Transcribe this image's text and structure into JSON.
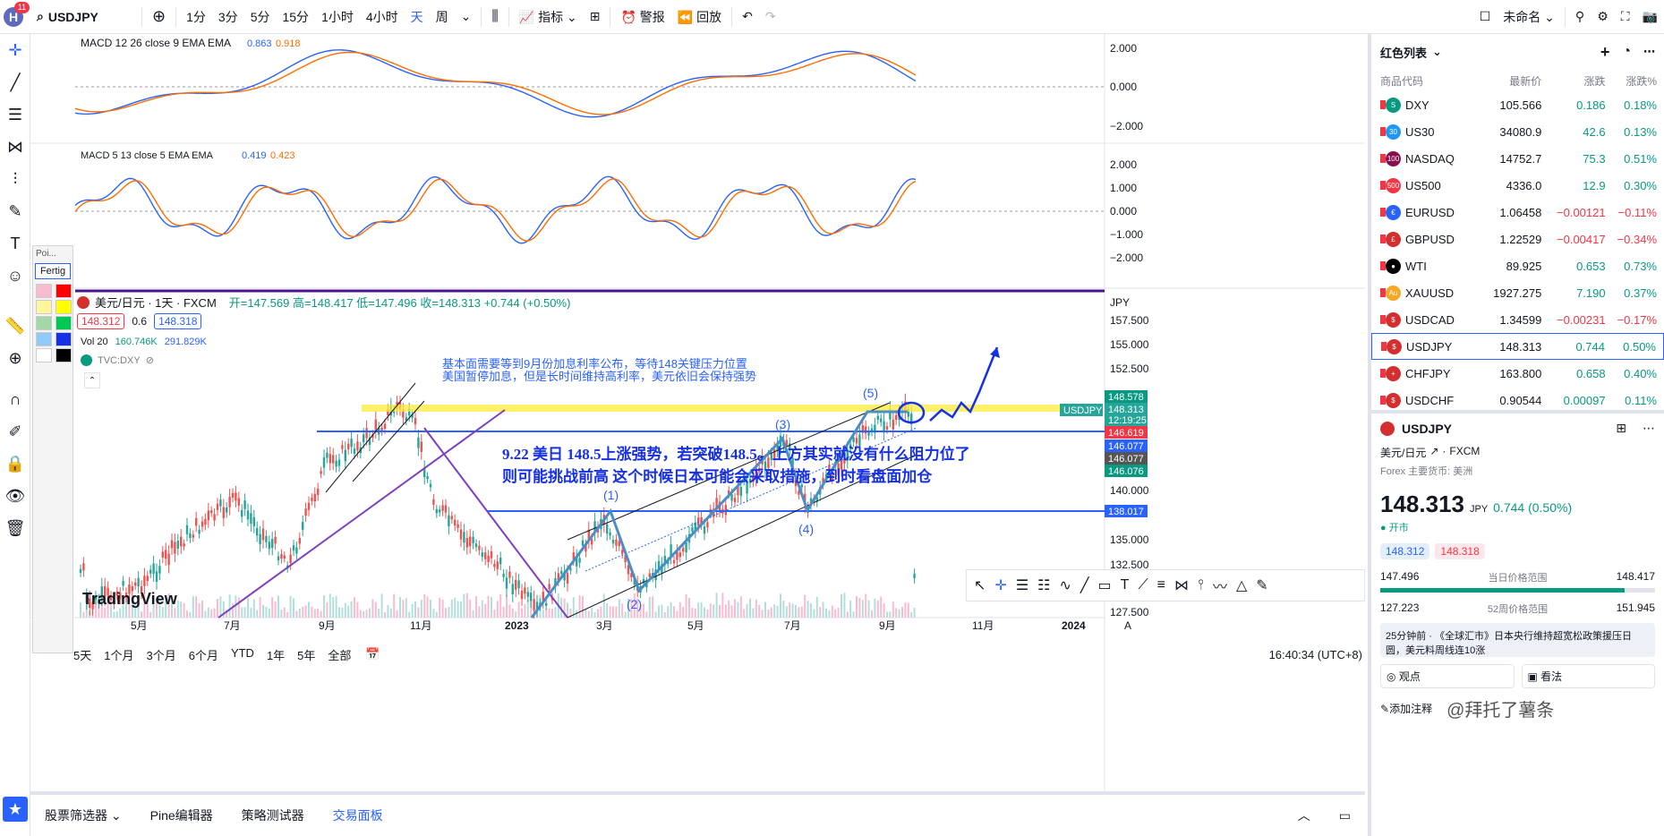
{
  "topbar": {
    "avatar_letter": "H",
    "notif_count": "11",
    "symbol": "USDJPY",
    "intervals": [
      "1分",
      "3分",
      "5分",
      "15分",
      "1小时",
      "4小时",
      "天",
      "周"
    ],
    "active_interval": "天",
    "indicators": "指标",
    "alert": "警报",
    "replay": "回放",
    "layout_name": "未命名"
  },
  "macd1": {
    "label": "MACD 12 26 close 9 EMA EMA",
    "v1": "0.863",
    "v2": "0.918",
    "axis": [
      "2.000",
      "0.000",
      "−2.000"
    ]
  },
  "macd2": {
    "label": "MACD 5 13 close 5 EMA EMA",
    "v1": "0.419",
    "v2": "0.423",
    "axis": [
      "2.000",
      "1.000",
      "0.000",
      "−1.000",
      "−2.000"
    ]
  },
  "main": {
    "title": "美元/日元 · 1天 · FXCM",
    "ohlc": "开=147.569  高=148.417  低=147.496  收=148.313  +0.744 (+0.50%)",
    "bid": "148.312",
    "spread": "0.6",
    "ask": "148.318",
    "vol": "Vol 20",
    "vol1": "160.746K",
    "vol2": "291.829K",
    "compare": "TVC:DXY",
    "currency": "JPY",
    "price_axis": [
      "157.500",
      "155.000",
      "152.500",
      "148.578",
      "148.313",
      "12:19:25",
      "146.619",
      "146.077",
      "146.077",
      "146.076",
      "140.000",
      "138.017",
      "135.000",
      "132.500",
      "127.500"
    ],
    "time_axis": [
      "5月",
      "7月",
      "9月",
      "11月",
      "2023",
      "3月",
      "5月",
      "7月",
      "9月",
      "11月",
      "2024"
    ],
    "note1": "基本面需要等到9月份加息利率公布，等待148关键压力位置",
    "note2": "美国暂停加息，但是长时间维持高利率，美元依旧会保持强势",
    "big1": "9.22 美日 148.5上涨强势，若突破148.5。上方其实就没有什么阻力位了",
    "big2": "则可能挑战前高 这个时候日本可能会采取措施，到时看盘面加仓",
    "waves": [
      "(1)",
      "(2)",
      "(3)",
      "(4)",
      "(5)"
    ],
    "tag_symbol": "USDJPY",
    "brand": "TradingView",
    "ranges": [
      "5天",
      "1个月",
      "3个月",
      "6个月",
      "YTD",
      "1年",
      "5年",
      "全部"
    ],
    "clock": "16:40:34 (UTC+8)",
    "floating_tool_title": "Poi...",
    "floating_tool_sub": "Fertig"
  },
  "bottom": {
    "tabs": [
      "股票筛选器",
      "Pine编辑器",
      "策略测试器",
      "交易面板"
    ]
  },
  "watchlist": {
    "title": "红色列表",
    "headers": [
      "商品代码",
      "最新价",
      "涨跌",
      "涨跌%"
    ],
    "rows": [
      {
        "sym": "DXY",
        "price": "105.566",
        "chg": "0.186",
        "pct": "0.18%",
        "icon": "S",
        "color": "#089981"
      },
      {
        "sym": "US30",
        "price": "34080.9",
        "chg": "42.6",
        "pct": "0.13%",
        "icon": "30",
        "color": "#2196f3"
      },
      {
        "sym": "NASDAQ",
        "price": "14752.7",
        "chg": "75.3",
        "pct": "0.51%",
        "icon": "100",
        "color": "#880e4f"
      },
      {
        "sym": "US500",
        "price": "4336.0",
        "chg": "12.9",
        "pct": "0.30%",
        "icon": "500",
        "color": "#f23645"
      },
      {
        "sym": "EURUSD",
        "price": "1.06458",
        "chg": "−0.00121",
        "pct": "−0.11%",
        "icon": "€",
        "color": "#2962ff"
      },
      {
        "sym": "GBPUSD",
        "price": "1.22529",
        "chg": "−0.00417",
        "pct": "−0.34%",
        "icon": "£",
        "color": "#d32f2f"
      },
      {
        "sym": "WTI",
        "price": "89.925",
        "chg": "0.653",
        "pct": "0.73%",
        "icon": "●",
        "color": "#000000"
      },
      {
        "sym": "XAUUSD",
        "price": "1927.275",
        "chg": "7.190",
        "pct": "0.37%",
        "icon": "Au",
        "color": "#f9a825"
      },
      {
        "sym": "USDCAD",
        "price": "1.34599",
        "chg": "−0.00231",
        "pct": "−0.17%",
        "icon": "$",
        "color": "#d32f2f"
      },
      {
        "sym": "USDJPY",
        "price": "148.313",
        "chg": "0.744",
        "pct": "0.50%",
        "icon": "$",
        "color": "#d32f2f"
      },
      {
        "sym": "CHFJPY",
        "price": "163.800",
        "chg": "0.658",
        "pct": "0.40%",
        "icon": "+",
        "color": "#d32f2f"
      },
      {
        "sym": "USDCHF",
        "price": "0.90544",
        "chg": "0.00097",
        "pct": "0.11%",
        "icon": "$",
        "color": "#d32f2f"
      }
    ]
  },
  "detail": {
    "symbol": "USDJPY",
    "name": "美元/日元",
    "exchange": "FXCM",
    "category": "Forex 主要货币: 美洲",
    "price": "148.313",
    "unit": "JPY",
    "change": "0.744 (0.50%)",
    "market": "开市",
    "bid": "148.312",
    "ask": "148.318",
    "day_low": "147.496",
    "day_label": "当日价格范围",
    "day_high": "148.417",
    "wk_low": "127.223",
    "wk_label": "52周价格范围",
    "wk_high": "151.945",
    "news": "25分钟前 · 《全球汇市》日本央行维持超宽松政策援压日圆，美元料周线连10涨",
    "tab1": "观点",
    "tab2": "看法",
    "add_note": "添加注释",
    "watermark": "@拜托了薯条"
  }
}
